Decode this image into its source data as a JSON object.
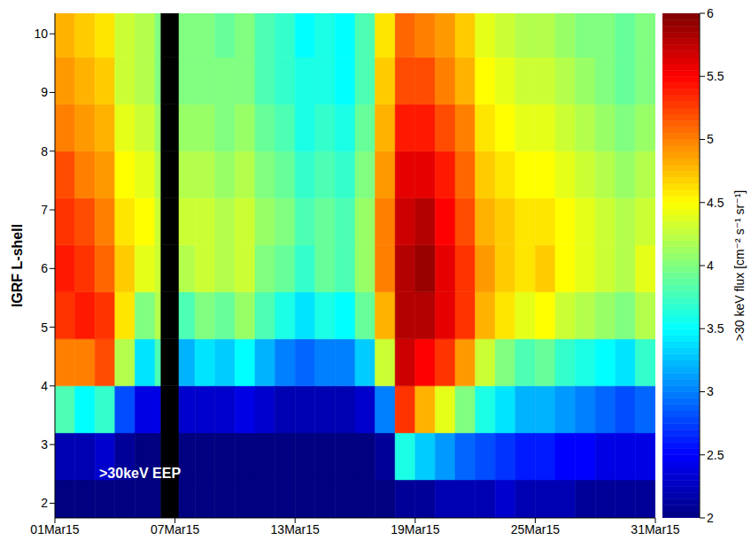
{
  "chart_data": {
    "type": "heatmap",
    "y_label": "IGRF L-shell",
    "annotation": ">30keV EEP",
    "xlim": [
      1,
      31
    ],
    "xticks": [
      {
        "value": 1,
        "label": "01Mar15"
      },
      {
        "value": 7,
        "label": "07Mar15"
      },
      {
        "value": 13,
        "label": "13Mar15"
      },
      {
        "value": 19,
        "label": "19Mar15"
      },
      {
        "value": 25,
        "label": "25Mar15"
      },
      {
        "value": 31,
        "label": "31Mar15"
      }
    ],
    "ylim": [
      1.75,
      10.35
    ],
    "yticks": [
      2,
      3,
      4,
      5,
      6,
      7,
      8,
      9,
      10
    ],
    "x_edges": [
      1,
      2,
      3,
      4,
      5,
      6,
      6.3,
      7.2,
      8,
      9,
      10,
      11,
      12,
      13,
      14,
      15,
      16,
      17,
      18,
      19,
      20,
      21,
      22,
      23,
      24,
      25,
      26,
      27,
      28,
      29,
      30,
      31
    ],
    "y_edges": [
      1.75,
      2.4,
      3.2,
      4.0,
      4.8,
      5.6,
      6.4,
      7.2,
      8.0,
      8.8,
      9.6,
      10.35
    ],
    "values": [
      [
        2.0,
        2.2,
        3.8,
        5.0,
        5.3,
        5.4,
        5.3,
        5.2,
        5.0,
        4.9,
        4.8
      ],
      [
        2.0,
        2.2,
        3.5,
        5.0,
        5.4,
        5.3,
        5.2,
        5.0,
        4.9,
        4.8,
        4.7
      ],
      [
        2.0,
        2.3,
        3.7,
        5.2,
        5.3,
        5.1,
        5.0,
        4.9,
        4.8,
        4.7,
        4.6
      ],
      [
        2.0,
        2.1,
        2.8,
        4.2,
        4.6,
        4.7,
        4.6,
        4.5,
        4.4,
        4.3,
        4.3
      ],
      [
        2.0,
        2.0,
        2.4,
        3.4,
        4.0,
        4.4,
        4.5,
        4.4,
        4.3,
        4.2,
        4.2
      ],
      [
        2.0,
        2.0,
        2.4,
        3.8,
        4.2,
        4.3,
        4.3,
        4.2,
        4.1,
        4.0,
        4.0
      ],
      [
        null,
        null,
        null,
        null,
        null,
        null,
        null,
        null,
        null,
        null,
        null
      ],
      [
        2.0,
        2.0,
        2.3,
        3.2,
        3.8,
        4.2,
        4.3,
        4.2,
        4.1,
        4.0,
        4.0
      ],
      [
        2.0,
        2.0,
        2.3,
        3.4,
        4.0,
        4.3,
        4.3,
        4.2,
        4.1,
        4.0,
        4.0
      ],
      [
        2.0,
        2.0,
        2.3,
        3.3,
        3.9,
        4.2,
        4.2,
        4.1,
        4.0,
        4.0,
        3.9
      ],
      [
        2.0,
        2.0,
        2.4,
        3.5,
        4.1,
        4.3,
        4.3,
        4.2,
        4.1,
        4.0,
        4.0
      ],
      [
        2.0,
        2.0,
        2.3,
        3.2,
        3.8,
        4.0,
        4.1,
        4.0,
        3.9,
        3.8,
        3.8
      ],
      [
        2.0,
        2.0,
        2.2,
        3.0,
        3.6,
        3.9,
        4.0,
        3.9,
        3.8,
        3.7,
        3.7
      ],
      [
        2.0,
        2.0,
        2.2,
        2.9,
        3.4,
        3.7,
        3.8,
        3.7,
        3.6,
        3.6,
        3.5
      ],
      [
        2.0,
        2.0,
        2.2,
        3.0,
        3.6,
        3.9,
        3.9,
        3.8,
        3.7,
        3.6,
        3.6
      ],
      [
        2.0,
        2.0,
        2.2,
        3.0,
        3.5,
        3.8,
        3.8,
        3.7,
        3.6,
        3.5,
        3.5
      ],
      [
        2.0,
        2.0,
        2.3,
        3.3,
        3.9,
        4.1,
        4.1,
        4.0,
        3.9,
        3.8,
        3.8
      ],
      [
        2.0,
        2.1,
        3.0,
        4.3,
        4.8,
        5.0,
        5.0,
        4.9,
        4.8,
        4.7,
        4.6
      ],
      [
        2.1,
        3.6,
        5.3,
        5.7,
        5.8,
        5.8,
        5.7,
        5.6,
        5.4,
        5.2,
        5.1
      ],
      [
        2.1,
        3.3,
        4.8,
        5.5,
        5.8,
        5.9,
        5.8,
        5.6,
        5.4,
        5.2,
        5.0
      ],
      [
        2.2,
        3.1,
        4.4,
        5.3,
        5.6,
        5.6,
        5.5,
        5.4,
        5.2,
        5.0,
        4.9
      ],
      [
        2.2,
        2.9,
        4.0,
        4.9,
        5.3,
        5.3,
        5.2,
        5.1,
        5.0,
        4.8,
        4.7
      ],
      [
        2.2,
        2.8,
        3.6,
        4.3,
        4.8,
        4.9,
        4.8,
        4.7,
        4.6,
        4.5,
        4.4
      ],
      [
        2.3,
        2.7,
        3.4,
        4.0,
        4.6,
        4.7,
        4.7,
        4.6,
        4.5,
        4.4,
        4.3
      ],
      [
        2.2,
        2.6,
        3.2,
        3.8,
        4.4,
        4.6,
        4.6,
        4.5,
        4.4,
        4.3,
        4.2
      ],
      [
        2.2,
        2.6,
        3.2,
        3.9,
        4.5,
        4.7,
        4.6,
        4.5,
        4.4,
        4.3,
        4.2
      ],
      [
        2.2,
        2.5,
        3.1,
        3.7,
        4.3,
        4.5,
        4.5,
        4.4,
        4.3,
        4.2,
        4.1
      ],
      [
        2.1,
        2.5,
        3.0,
        3.6,
        4.2,
        4.4,
        4.4,
        4.3,
        4.2,
        4.1,
        4.0
      ],
      [
        2.1,
        2.4,
        2.9,
        3.5,
        4.1,
        4.3,
        4.3,
        4.2,
        4.1,
        4.0,
        4.0
      ],
      [
        2.1,
        2.4,
        2.8,
        3.4,
        4.0,
        4.2,
        4.2,
        4.1,
        4.0,
        3.9,
        3.9
      ],
      [
        2.1,
        2.4,
        2.9,
        3.7,
        4.2,
        4.4,
        4.3,
        4.2,
        4.1,
        4.0,
        4.0
      ]
    ],
    "colorbar": {
      "label": ">30 keV flux [cm⁻² s⁻¹ sr⁻¹]",
      "range": [
        2,
        6
      ],
      "ticks": [
        2,
        2.5,
        3,
        3.5,
        4,
        4.5,
        5,
        5.5,
        6
      ]
    }
  }
}
